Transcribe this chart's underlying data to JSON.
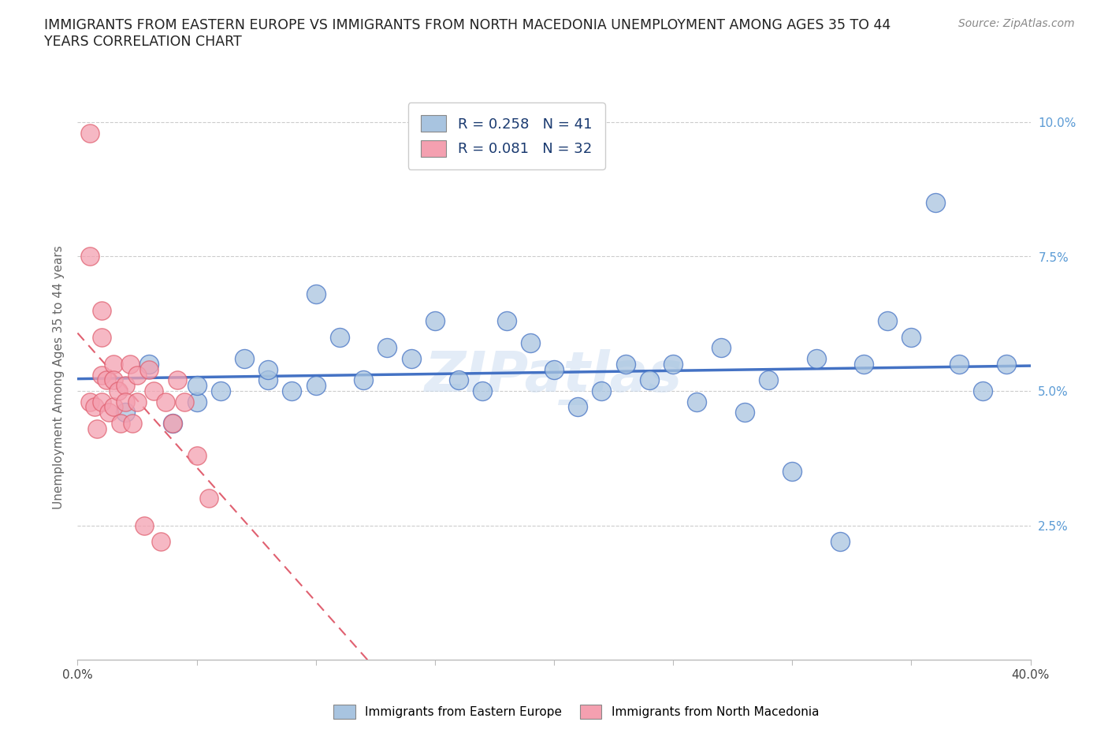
{
  "title": "IMMIGRANTS FROM EASTERN EUROPE VS IMMIGRANTS FROM NORTH MACEDONIA UNEMPLOYMENT AMONG AGES 35 TO 44\nYEARS CORRELATION CHART",
  "source": "Source: ZipAtlas.com",
  "ylabel": "Unemployment Among Ages 35 to 44 years",
  "yticks": [
    "2.5%",
    "5.0%",
    "7.5%",
    "10.0%"
  ],
  "ytick_vals": [
    0.025,
    0.05,
    0.075,
    0.1
  ],
  "xlim": [
    0.0,
    0.4
  ],
  "ylim": [
    0.0,
    0.105
  ],
  "legend_r1": "R = 0.258",
  "legend_n1": "N = 41",
  "legend_r2": "R = 0.081",
  "legend_n2": "N = 32",
  "color_blue": "#a8c4e0",
  "color_pink": "#f4a0b0",
  "line_blue": "#4472c4",
  "line_pink": "#e06070",
  "watermark": "ZIPat las",
  "blue_x": [
    0.02,
    0.03,
    0.04,
    0.05,
    0.05,
    0.06,
    0.07,
    0.08,
    0.08,
    0.09,
    0.1,
    0.1,
    0.11,
    0.12,
    0.13,
    0.14,
    0.15,
    0.16,
    0.17,
    0.18,
    0.19,
    0.2,
    0.21,
    0.22,
    0.23,
    0.24,
    0.25,
    0.26,
    0.27,
    0.28,
    0.29,
    0.3,
    0.31,
    0.32,
    0.33,
    0.34,
    0.35,
    0.36,
    0.37,
    0.38,
    0.39
  ],
  "blue_y": [
    0.046,
    0.055,
    0.044,
    0.048,
    0.051,
    0.05,
    0.056,
    0.052,
    0.054,
    0.05,
    0.051,
    0.068,
    0.06,
    0.052,
    0.058,
    0.056,
    0.063,
    0.052,
    0.05,
    0.063,
    0.059,
    0.054,
    0.047,
    0.05,
    0.055,
    0.052,
    0.055,
    0.048,
    0.058,
    0.046,
    0.052,
    0.035,
    0.056,
    0.022,
    0.055,
    0.063,
    0.06,
    0.085,
    0.055,
    0.05,
    0.055
  ],
  "pink_x": [
    0.005,
    0.005,
    0.005,
    0.007,
    0.008,
    0.01,
    0.01,
    0.01,
    0.01,
    0.012,
    0.013,
    0.015,
    0.015,
    0.015,
    0.017,
    0.018,
    0.02,
    0.02,
    0.022,
    0.023,
    0.025,
    0.025,
    0.028,
    0.03,
    0.032,
    0.035,
    0.037,
    0.04,
    0.042,
    0.045,
    0.05,
    0.055
  ],
  "pink_y": [
    0.098,
    0.075,
    0.048,
    0.047,
    0.043,
    0.065,
    0.06,
    0.053,
    0.048,
    0.052,
    0.046,
    0.055,
    0.052,
    0.047,
    0.05,
    0.044,
    0.051,
    0.048,
    0.055,
    0.044,
    0.053,
    0.048,
    0.025,
    0.054,
    0.05,
    0.022,
    0.048,
    0.044,
    0.052,
    0.048,
    0.038,
    0.03
  ]
}
